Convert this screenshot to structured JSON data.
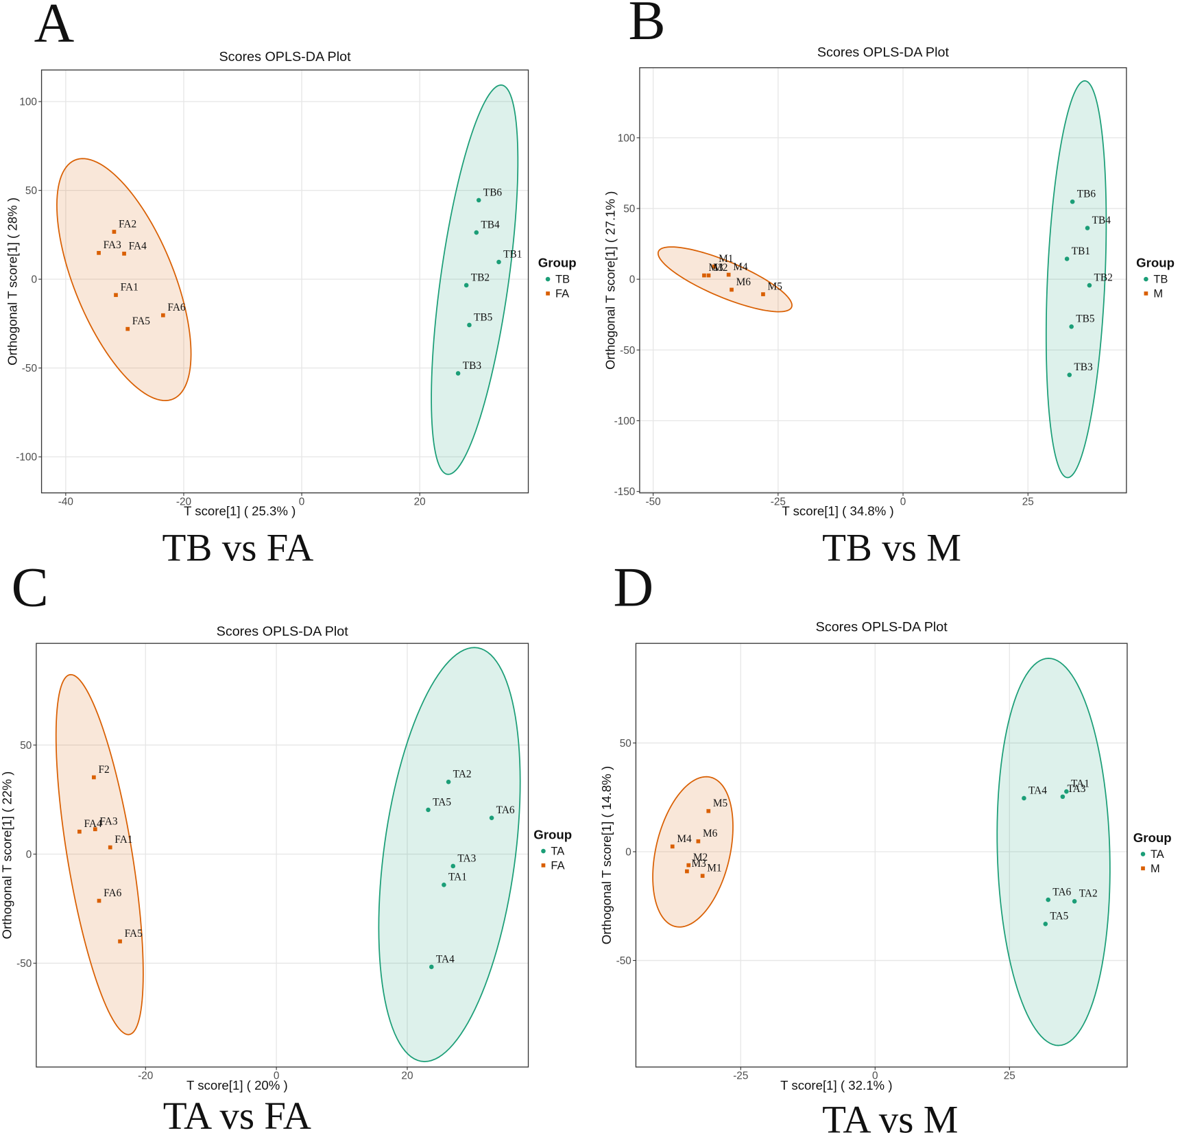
{
  "chart_data": [
    {
      "type": "scatter",
      "panel": "A",
      "title": "Scores OPLS-DA Plot",
      "xlabel": "T score[1] ( 25.3% )",
      "ylabel": "Orthogonal T score[1] ( 28% )",
      "caption": "TB vs FA",
      "legend_title": "Group",
      "xlim": [
        -44.1,
        38.4
      ],
      "ylim": [
        -120.3,
        117.8
      ],
      "xticks": [
        -40,
        -20,
        0,
        20
      ],
      "yticks": [
        -100,
        -50,
        0,
        50,
        100
      ],
      "grid": true,
      "series": [
        {
          "name": "TB",
          "color": "#1b9e77",
          "marker": "circle",
          "labels": [
            "TB6",
            "TB4",
            "TB1",
            "TB2",
            "TB5",
            "TB3"
          ],
          "x": [
            30.0,
            29.6,
            33.4,
            27.9,
            28.4,
            26.5
          ],
          "y": [
            44.5,
            26.3,
            9.7,
            -3.4,
            -25.8,
            -53.0
          ]
        },
        {
          "name": "FA",
          "color": "#d95f02",
          "marker": "square",
          "labels": [
            "FA2",
            "FA3",
            "FA4",
            "FA1",
            "FA6",
            "FA5"
          ],
          "x": [
            -31.8,
            -34.4,
            -30.1,
            -31.5,
            -23.5,
            -29.5
          ],
          "y": [
            26.7,
            14.8,
            14.4,
            -8.9,
            -20.3,
            -28.0
          ]
        }
      ]
    },
    {
      "type": "scatter",
      "panel": "B",
      "title": "Scores OPLS-DA Plot",
      "xlabel": "T score[1] ( 34.8% )",
      "ylabel": "Orthogonal T score[1] ( 27.1% )",
      "caption": "TB vs M",
      "legend_title": "Group",
      "xlim": [
        -52.7,
        44.7
      ],
      "ylim": [
        -151,
        149.5
      ],
      "xticks": [
        -50,
        -25,
        0,
        25
      ],
      "yticks": [
        -150,
        -100,
        -50,
        0,
        50,
        100
      ],
      "grid": true,
      "series": [
        {
          "name": "TB",
          "color": "#1b9e77",
          "marker": "circle",
          "labels": [
            "TB6",
            "TB4",
            "TB1",
            "TB2",
            "TB5",
            "TB3"
          ],
          "x": [
            33.9,
            36.9,
            32.8,
            37.3,
            33.7,
            33.3
          ],
          "y": [
            54.8,
            36.2,
            14.4,
            -4.3,
            -33.5,
            -67.6
          ]
        },
        {
          "name": "M",
          "color": "#d95f02",
          "marker": "square",
          "labels": [
            "M1",
            "M3",
            "M2",
            "M4",
            "M6",
            "M5"
          ],
          "x": [
            -37.8,
            -39.8,
            -38.9,
            -34.9,
            -34.3,
            -28.0
          ],
          "y": [
            9.0,
            2.7,
            2.7,
            3.2,
            -7.4,
            -10.6
          ]
        }
      ]
    },
    {
      "type": "scatter",
      "panel": "C",
      "title": "Scores OPLS-DA Plot",
      "xlabel": "T score[1] ( 20% )",
      "ylabel": "Orthogonal T score[1] ( 22% )",
      "caption": "TA vs FA",
      "legend_title": "Group",
      "xlim": [
        -36.7,
        38.5
      ],
      "ylim": [
        -97.6,
        96.6
      ],
      "xticks": [
        -20,
        0,
        20
      ],
      "yticks": [
        -50,
        0,
        50
      ],
      "grid": true,
      "series": [
        {
          "name": "TA",
          "color": "#1b9e77",
          "marker": "circle",
          "labels": [
            "TA2",
            "TA5",
            "TA6",
            "TA3",
            "TA1",
            "TA4"
          ],
          "x": [
            26.3,
            23.2,
            32.9,
            27.0,
            25.6,
            23.7
          ],
          "y": [
            33.1,
            20.3,
            16.6,
            -5.5,
            -14.1,
            -51.7
          ]
        },
        {
          "name": "FA",
          "color": "#d95f02",
          "marker": "square",
          "labels": [
            "F2",
            "FA4",
            "FA3",
            "FA1",
            "FA6",
            "FA5"
          ],
          "x": [
            -27.9,
            -30.1,
            -27.7,
            -25.4,
            -27.1,
            -23.9
          ],
          "y": [
            35.2,
            10.3,
            11.4,
            3.1,
            -21.4,
            -40.0
          ]
        }
      ]
    },
    {
      "type": "scatter",
      "panel": "D",
      "title": "Scores OPLS-DA Plot",
      "xlabel": "T score[1] ( 32.1% )",
      "ylabel": "Orthogonal T score[1] ( 14.8% )",
      "caption": "TA vs M",
      "legend_title": "Group",
      "xlim": [
        -44.5,
        46.9
      ],
      "ylim": [
        -99,
        95.8
      ],
      "xticks": [
        -25,
        0,
        25
      ],
      "yticks": [
        -50,
        0,
        50
      ],
      "grid": true,
      "series": [
        {
          "name": "TA",
          "color": "#1b9e77",
          "marker": "circle",
          "labels": [
            "TA1",
            "TA4",
            "TA3",
            "TA6",
            "TA2",
            "TA5"
          ],
          "x": [
            35.6,
            27.7,
            34.9,
            32.2,
            37.1,
            31.7
          ],
          "y": [
            27.7,
            24.6,
            25.3,
            -22.1,
            -22.8,
            -33.2
          ]
        },
        {
          "name": "M",
          "color": "#d95f02",
          "marker": "square",
          "labels": [
            "M5",
            "M6",
            "M4",
            "M2",
            "M3",
            "M1"
          ],
          "x": [
            -31.0,
            -32.9,
            -37.7,
            -34.7,
            -35.0,
            -32.1
          ],
          "y": [
            18.7,
            4.8,
            2.4,
            -6.2,
            -9.0,
            -11.1
          ]
        }
      ]
    }
  ]
}
